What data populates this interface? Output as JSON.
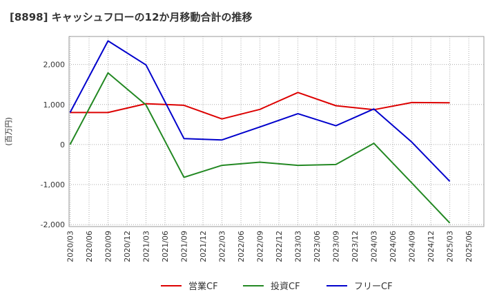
{
  "chart_data": {
    "type": "line",
    "title": "[8898]  キャッシュフローの12か月移動合計の推移",
    "ylabel": "(百万円)",
    "xlabel": "",
    "ylim": [
      -2050,
      2700
    ],
    "yticks": [
      -2000,
      -1000,
      0,
      1000,
      2000
    ],
    "ytick_labels": [
      "-2,000",
      "-1,000",
      "0",
      "1,000",
      "2,000"
    ],
    "x_ticks": [
      "2020/03",
      "2020/06",
      "2020/09",
      "2020/12",
      "2021/03",
      "2021/06",
      "2021/09",
      "2021/12",
      "2022/03",
      "2022/06",
      "2022/09",
      "2022/12",
      "2023/03",
      "2023/06",
      "2023/09",
      "2023/12",
      "2024/03",
      "2024/06",
      "2024/09",
      "2024/12",
      "2025/03",
      "2025/06"
    ],
    "grid": true,
    "legend_position": "bottom",
    "series": [
      {
        "name": "営業CF",
        "color": "#dd0000",
        "points": [
          [
            "2020/03",
            800
          ],
          [
            "2020/09",
            800
          ],
          [
            "2021/03",
            1020
          ],
          [
            "2021/09",
            980
          ],
          [
            "2022/03",
            640
          ],
          [
            "2022/09",
            880
          ],
          [
            "2023/03",
            1300
          ],
          [
            "2023/09",
            970
          ],
          [
            "2024/03",
            870
          ],
          [
            "2024/09",
            1050
          ],
          [
            "2025/03",
            1045
          ]
        ]
      },
      {
        "name": "投資CF",
        "color": "#228822",
        "points": [
          [
            "2020/03",
            0
          ],
          [
            "2020/09",
            1790
          ],
          [
            "2021/03",
            990
          ],
          [
            "2021/09",
            -820
          ],
          [
            "2022/03",
            -520
          ],
          [
            "2022/09",
            -440
          ],
          [
            "2023/03",
            -520
          ],
          [
            "2023/09",
            -500
          ],
          [
            "2024/03",
            30
          ],
          [
            "2024/09",
            -960
          ],
          [
            "2025/03",
            -1960
          ]
        ]
      },
      {
        "name": "フリーCF",
        "color": "#0000cc",
        "points": [
          [
            "2020/03",
            800
          ],
          [
            "2020/09",
            2590
          ],
          [
            "2021/03",
            1990
          ],
          [
            "2021/09",
            150
          ],
          [
            "2022/03",
            115
          ],
          [
            "2022/09",
            440
          ],
          [
            "2023/03",
            770
          ],
          [
            "2023/09",
            470
          ],
          [
            "2024/03",
            890
          ],
          [
            "2024/09",
            60
          ],
          [
            "2025/03",
            -920
          ]
        ]
      }
    ]
  }
}
